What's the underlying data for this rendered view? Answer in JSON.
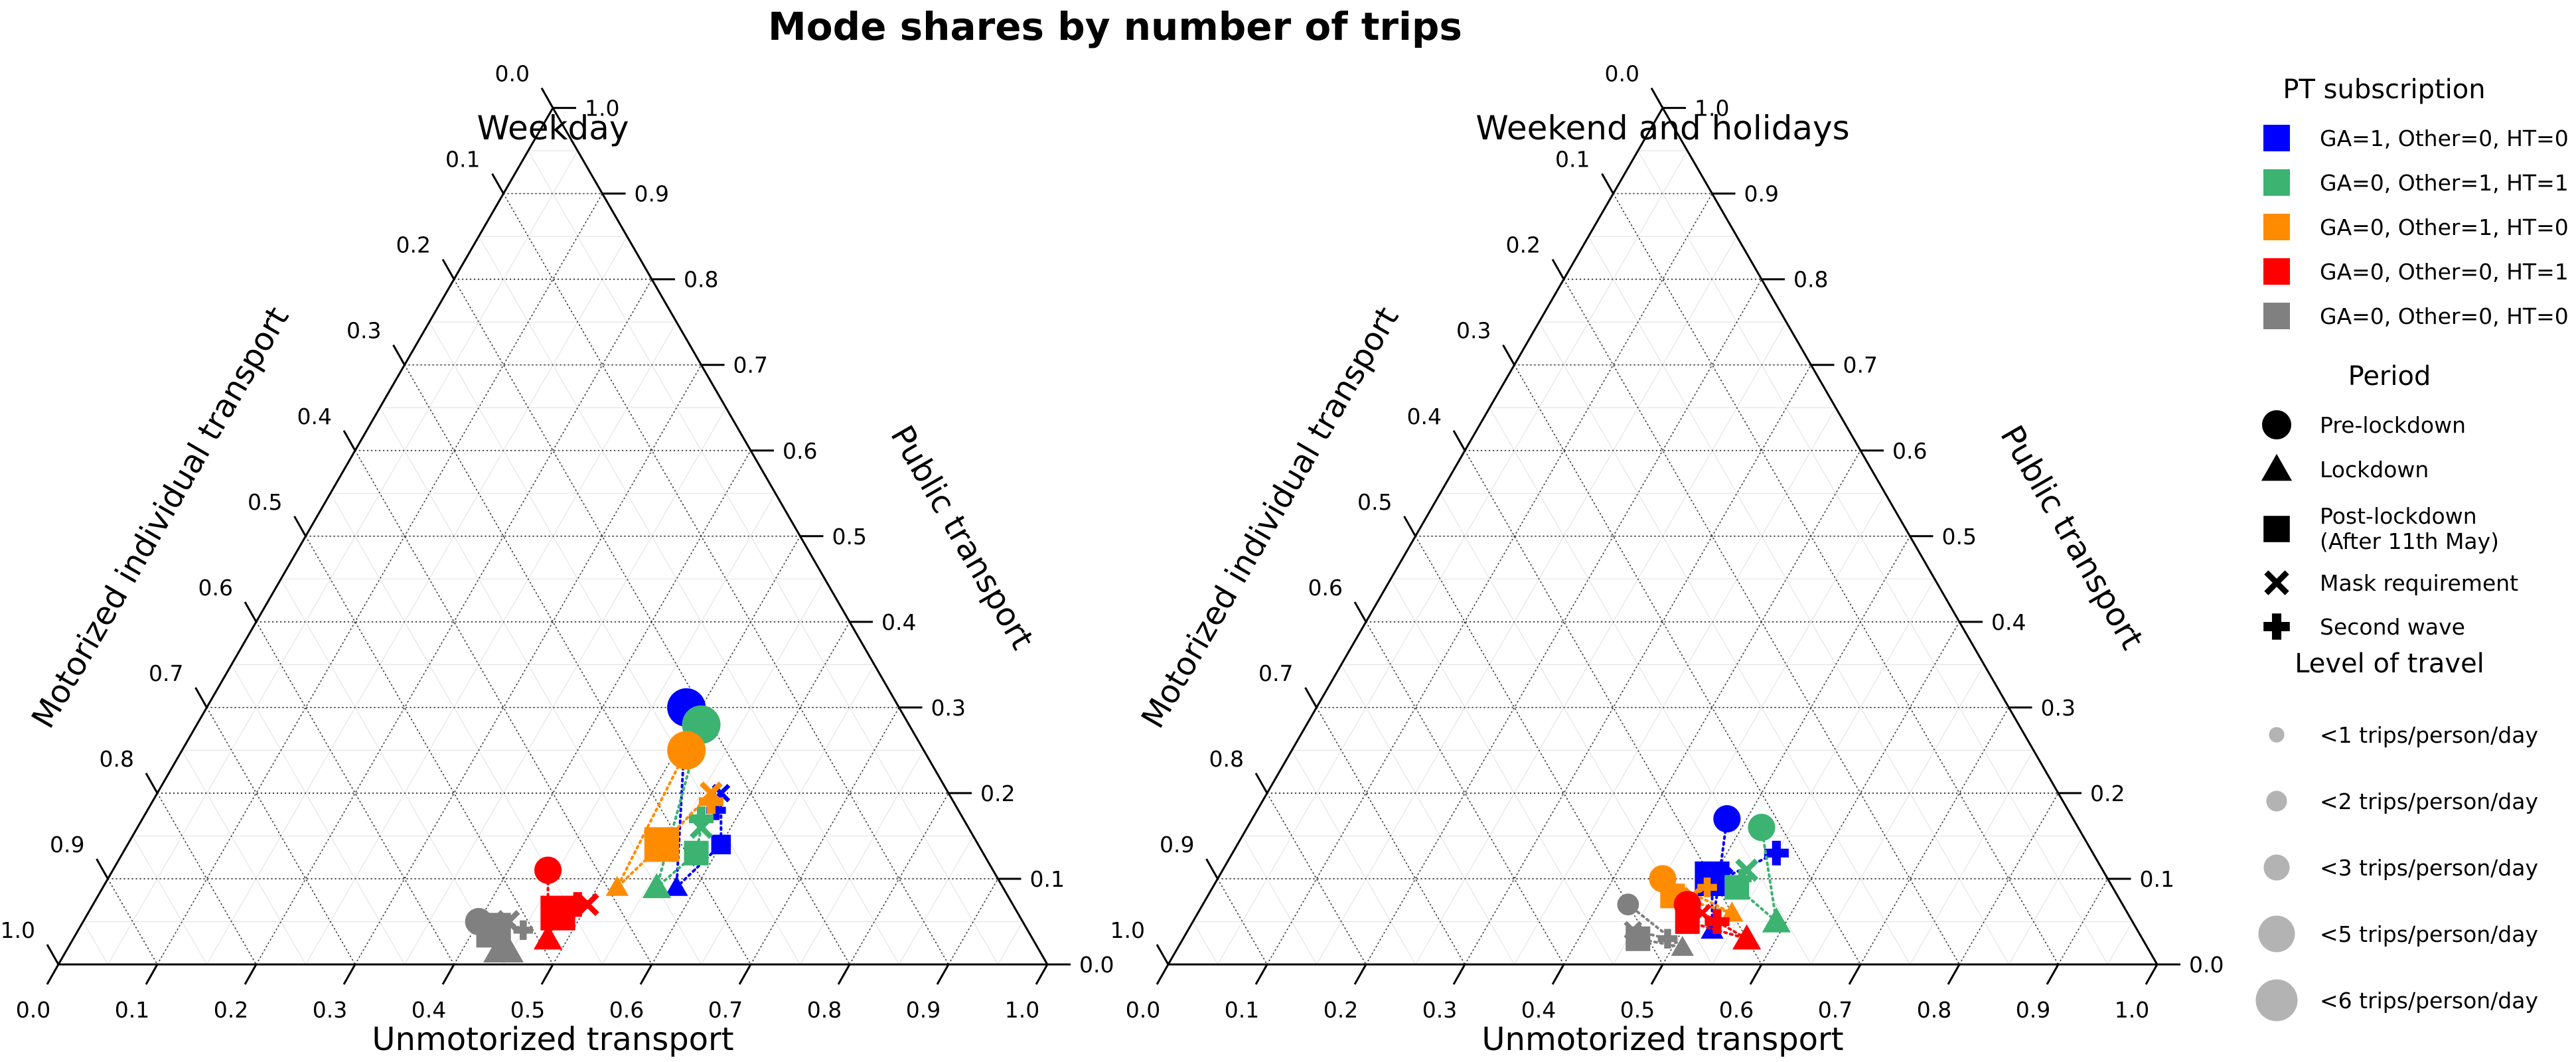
{
  "title": "Mode shares by number of trips",
  "legend": {
    "pt_title": "PT subscription",
    "pt_items": [
      {
        "label": "GA=1, Other=0, HT=0",
        "color": "#0000ff"
      },
      {
        "label": "GA=0, Other=1, HT=1",
        "color": "#3cb371"
      },
      {
        "label": "GA=0, Other=1, HT=0",
        "color": "#ff8c00"
      },
      {
        "label": "GA=0, Other=0, HT=1",
        "color": "#ff0000"
      },
      {
        "label": "GA=0, Other=0, HT=0",
        "color": "#808080"
      }
    ],
    "period_title": "Period",
    "period_items": [
      {
        "label": "Pre-lockdown",
        "marker": "circle"
      },
      {
        "label": "Lockdown",
        "marker": "triangle"
      },
      {
        "label": "Post-lockdown\n(After 11th May)",
        "marker": "square"
      },
      {
        "label": "Mask requirement",
        "marker": "x"
      },
      {
        "label": "Second wave",
        "marker": "plus"
      }
    ],
    "level_title": "Level of travel",
    "level_items": [
      {
        "label": "<1 trips/person/day",
        "value": 1
      },
      {
        "label": "<2 trips/person/day",
        "value": 2
      },
      {
        "label": "<3 trips/person/day",
        "value": 3
      },
      {
        "label": "<5 trips/person/day",
        "value": 5
      },
      {
        "label": "<6 trips/person/day",
        "value": 6
      }
    ]
  },
  "chart_data": [
    {
      "type": "scatter",
      "subtitle": "Weekday",
      "axes": {
        "bottom": "Unmotorized transport",
        "left": "Motorized individual transport",
        "right": "Public transport"
      },
      "ticks": [
        "0.0",
        "0.1",
        "0.2",
        "0.3",
        "0.4",
        "0.5",
        "0.6",
        "0.7",
        "0.8",
        "0.9",
        "1.0"
      ],
      "series": [
        {
          "group": "GA=1, Other=0, HT=0",
          "points": [
            {
              "period": "Pre-lockdown",
              "unmotorized": 0.485,
              "public": 0.3,
              "level": 5
            },
            {
              "period": "Lockdown",
              "unmotorized": 0.58,
              "public": 0.09,
              "level": 2
            },
            {
              "period": "Post-lockdown",
              "unmotorized": 0.6,
              "public": 0.14,
              "level": 2
            },
            {
              "period": "Mask requirement",
              "unmotorized": 0.57,
              "public": 0.2,
              "level": 2
            },
            {
              "period": "Second wave",
              "unmotorized": 0.575,
              "public": 0.18,
              "level": 2
            }
          ]
        },
        {
          "group": "GA=0, Other=1, HT=1",
          "points": [
            {
              "period": "Pre-lockdown",
              "unmotorized": 0.51,
              "public": 0.28,
              "level": 5
            },
            {
              "period": "Lockdown",
              "unmotorized": 0.56,
              "public": 0.09,
              "level": 3
            },
            {
              "period": "Post-lockdown",
              "unmotorized": 0.58,
              "public": 0.13,
              "level": 3
            },
            {
              "period": "Mask requirement",
              "unmotorized": 0.57,
              "public": 0.16,
              "level": 3
            },
            {
              "period": "Second wave",
              "unmotorized": 0.565,
              "public": 0.17,
              "level": 3
            }
          ]
        },
        {
          "group": "GA=0, Other=1, HT=0",
          "points": [
            {
              "period": "Pre-lockdown",
              "unmotorized": 0.51,
              "public": 0.25,
              "level": 5
            },
            {
              "period": "Lockdown",
              "unmotorized": 0.52,
              "public": 0.09,
              "level": 2
            },
            {
              "period": "Post-lockdown",
              "unmotorized": 0.54,
              "public": 0.14,
              "level": 5
            },
            {
              "period": "Mask requirement",
              "unmotorized": 0.56,
              "public": 0.2,
              "level": 3
            },
            {
              "period": "Second wave",
              "unmotorized": 0.565,
              "public": 0.19,
              "level": 3
            }
          ]
        },
        {
          "group": "GA=0, Other=0, HT=1",
          "points": [
            {
              "period": "Pre-lockdown",
              "unmotorized": 0.44,
              "public": 0.11,
              "level": 3
            },
            {
              "period": "Lockdown",
              "unmotorized": 0.48,
              "public": 0.03,
              "level": 3
            },
            {
              "period": "Post-lockdown",
              "unmotorized": 0.475,
              "public": 0.06,
              "level": 5
            },
            {
              "period": "Mask requirement",
              "unmotorized": 0.5,
              "public": 0.07,
              "level": 3
            },
            {
              "period": "Second wave",
              "unmotorized": 0.49,
              "public": 0.07,
              "level": 3
            }
          ]
        },
        {
          "group": "GA=0, Other=0, HT=0",
          "points": [
            {
              "period": "Pre-lockdown",
              "unmotorized": 0.4,
              "public": 0.05,
              "level": 3
            },
            {
              "period": "Lockdown",
              "unmotorized": 0.44,
              "public": 0.02,
              "level": 5
            },
            {
              "period": "Post-lockdown",
              "unmotorized": 0.42,
              "public": 0.04,
              "level": 5
            },
            {
              "period": "Mask requirement",
              "unmotorized": 0.43,
              "public": 0.05,
              "level": 3
            },
            {
              "period": "Second wave",
              "unmotorized": 0.45,
              "public": 0.04,
              "level": 2
            }
          ]
        }
      ]
    },
    {
      "type": "scatter",
      "subtitle": "Weekend and holidays",
      "axes": {
        "bottom": "Unmotorized transport",
        "left": "Motorized individual transport",
        "right": "Public transport"
      },
      "ticks": [
        "0.0",
        "0.1",
        "0.2",
        "0.3",
        "0.4",
        "0.5",
        "0.6",
        "0.7",
        "0.8",
        "0.9",
        "1.0"
      ],
      "series": [
        {
          "group": "GA=1, Other=0, HT=0",
          "points": [
            {
              "period": "Pre-lockdown",
              "unmotorized": 0.48,
              "public": 0.17,
              "level": 3
            },
            {
              "period": "Lockdown",
              "unmotorized": 0.53,
              "public": 0.04,
              "level": 2
            },
            {
              "period": "Post-lockdown",
              "unmotorized": 0.5,
              "public": 0.1,
              "level": 5
            },
            {
              "period": "Mask requirement",
              "unmotorized": 0.51,
              "public": 0.1,
              "level": 3
            },
            {
              "period": "Second wave",
              "unmotorized": 0.55,
              "public": 0.13,
              "level": 3
            }
          ]
        },
        {
          "group": "GA=0, Other=1, HT=1",
          "points": [
            {
              "period": "Pre-lockdown",
              "unmotorized": 0.52,
              "public": 0.16,
              "level": 3
            },
            {
              "period": "Lockdown",
              "unmotorized": 0.59,
              "public": 0.05,
              "level": 3
            },
            {
              "period": "Post-lockdown",
              "unmotorized": 0.53,
              "public": 0.09,
              "level": 3
            },
            {
              "period": "Mask requirement",
              "unmotorized": 0.53,
              "public": 0.11,
              "level": 3
            },
            {
              "period": "Second wave",
              "unmotorized": 0.53,
              "public": 0.1,
              "level": 2
            }
          ]
        },
        {
          "group": "GA=0, Other=1, HT=0",
          "points": [
            {
              "period": "Pre-lockdown",
              "unmotorized": 0.45,
              "public": 0.1,
              "level": 3
            },
            {
              "period": "Lockdown",
              "unmotorized": 0.54,
              "public": 0.06,
              "level": 2
            },
            {
              "period": "Post-lockdown",
              "unmotorized": 0.47,
              "public": 0.08,
              "level": 3
            },
            {
              "period": "Mask requirement",
              "unmotorized": 0.49,
              "public": 0.08,
              "level": 2
            },
            {
              "period": "Second wave",
              "unmotorized": 0.5,
              "public": 0.09,
              "level": 2
            }
          ]
        },
        {
          "group": "GA=0, Other=0, HT=1",
          "points": [
            {
              "period": "Pre-lockdown",
              "unmotorized": 0.49,
              "public": 0.07,
              "level": 3
            },
            {
              "period": "Lockdown",
              "unmotorized": 0.57,
              "public": 0.03,
              "level": 3
            },
            {
              "period": "Post-lockdown",
              "unmotorized": 0.5,
              "public": 0.05,
              "level": 3
            },
            {
              "period": "Mask requirement",
              "unmotorized": 0.51,
              "public": 0.06,
              "level": 2
            },
            {
              "period": "Second wave",
              "unmotorized": 0.53,
              "public": 0.05,
              "level": 3
            }
          ]
        },
        {
          "group": "GA=0, Other=0, HT=0",
          "points": [
            {
              "period": "Pre-lockdown",
              "unmotorized": 0.43,
              "public": 0.07,
              "level": 2
            },
            {
              "period": "Lockdown",
              "unmotorized": 0.51,
              "public": 0.02,
              "level": 2
            },
            {
              "period": "Post-lockdown",
              "unmotorized": 0.46,
              "public": 0.03,
              "level": 3
            },
            {
              "period": "Mask requirement",
              "unmotorized": 0.45,
              "public": 0.04,
              "level": 2
            },
            {
              "period": "Second wave",
              "unmotorized": 0.49,
              "public": 0.03,
              "level": 2
            }
          ]
        }
      ]
    }
  ]
}
